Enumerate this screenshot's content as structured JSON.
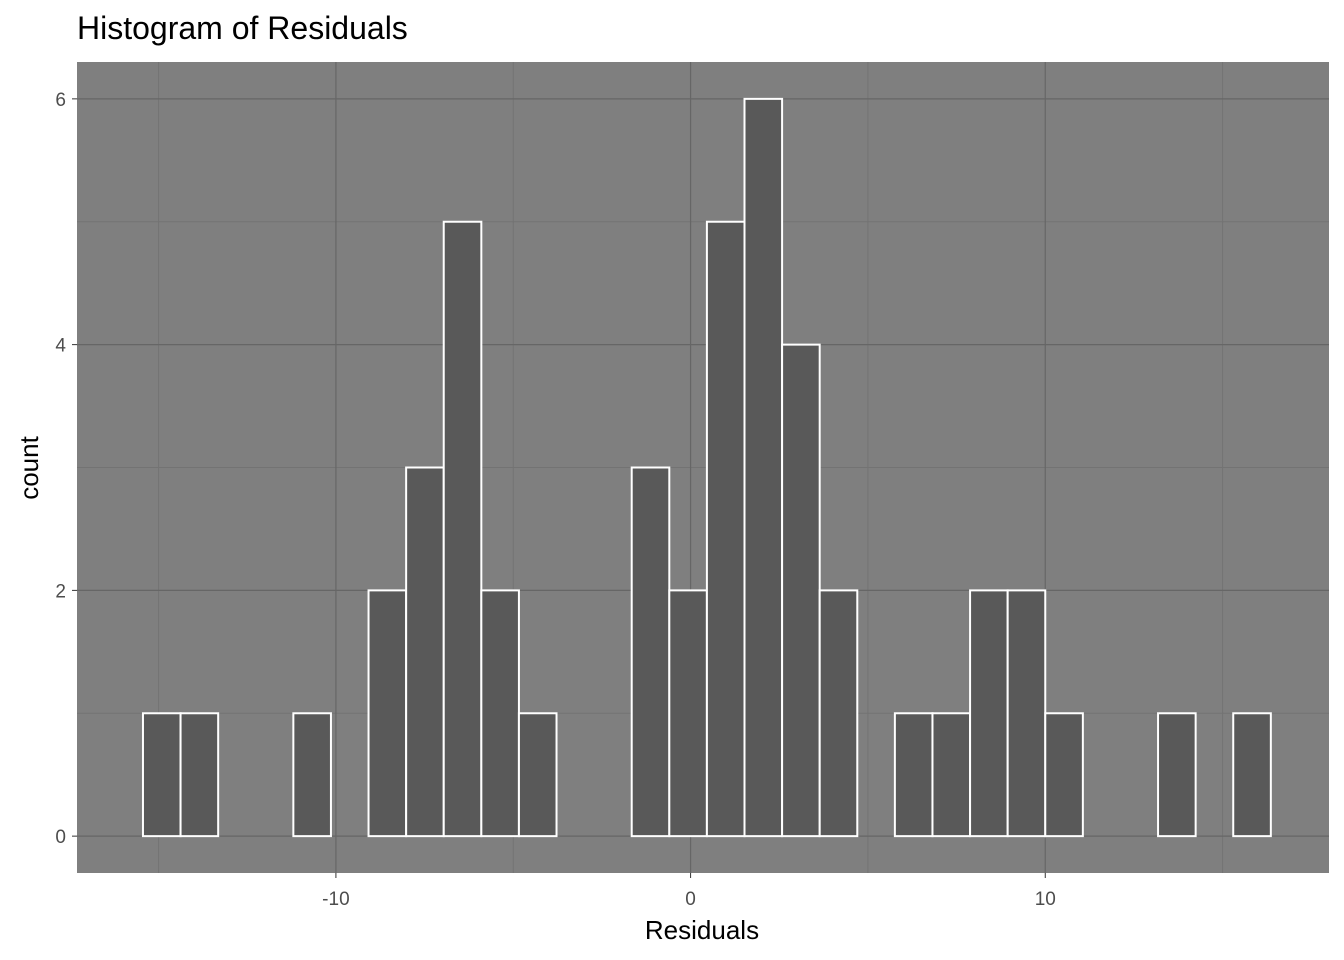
{
  "chart_data": {
    "type": "bar",
    "title": "Histogram of Residuals",
    "xlabel": "Residuals",
    "ylabel": "count",
    "bin_width": 1.06,
    "bins": [
      {
        "x_start": -15.44,
        "x_end": -14.38,
        "count": 1
      },
      {
        "x_start": -14.38,
        "x_end": -13.32,
        "count": 1
      },
      {
        "x_start": -13.32,
        "x_end": -12.26,
        "count": 0
      },
      {
        "x_start": -12.26,
        "x_end": -11.2,
        "count": 0
      },
      {
        "x_start": -11.2,
        "x_end": -10.14,
        "count": 1
      },
      {
        "x_start": -10.14,
        "x_end": -9.08,
        "count": 0
      },
      {
        "x_start": -9.08,
        "x_end": -8.02,
        "count": 2
      },
      {
        "x_start": -8.02,
        "x_end": -6.96,
        "count": 3
      },
      {
        "x_start": -6.96,
        "x_end": -5.9,
        "count": 5
      },
      {
        "x_start": -5.9,
        "x_end": -4.84,
        "count": 2
      },
      {
        "x_start": -4.84,
        "x_end": -3.78,
        "count": 1
      },
      {
        "x_start": -3.78,
        "x_end": -2.72,
        "count": 0
      },
      {
        "x_start": -2.72,
        "x_end": -1.66,
        "count": 0
      },
      {
        "x_start": -1.66,
        "x_end": -0.6,
        "count": 3
      },
      {
        "x_start": -0.6,
        "x_end": 0.46,
        "count": 2
      },
      {
        "x_start": 0.46,
        "x_end": 1.52,
        "count": 5
      },
      {
        "x_start": 1.52,
        "x_end": 2.58,
        "count": 6
      },
      {
        "x_start": 2.58,
        "x_end": 3.64,
        "count": 4
      },
      {
        "x_start": 3.64,
        "x_end": 4.7,
        "count": 2
      },
      {
        "x_start": 4.7,
        "x_end": 5.76,
        "count": 0
      },
      {
        "x_start": 5.76,
        "x_end": 6.82,
        "count": 1
      },
      {
        "x_start": 6.82,
        "x_end": 7.88,
        "count": 1
      },
      {
        "x_start": 7.88,
        "x_end": 8.94,
        "count": 2
      },
      {
        "x_start": 8.94,
        "x_end": 10.0,
        "count": 2
      },
      {
        "x_start": 10.0,
        "x_end": 11.06,
        "count": 1
      },
      {
        "x_start": 11.06,
        "x_end": 12.12,
        "count": 0
      },
      {
        "x_start": 12.12,
        "x_end": 13.18,
        "count": 0
      },
      {
        "x_start": 13.18,
        "x_end": 14.24,
        "count": 1
      },
      {
        "x_start": 14.24,
        "x_end": 15.3,
        "count": 0
      },
      {
        "x_start": 15.3,
        "x_end": 16.36,
        "count": 1
      }
    ],
    "xlim": [
      -17.3,
      18.0
    ],
    "ylim": [
      -0.3,
      6.3
    ],
    "x_ticks": [
      -10,
      0,
      10
    ],
    "x_tick_labels": [
      "-10",
      "0",
      "10"
    ],
    "y_ticks": [
      0,
      2,
      4,
      6
    ],
    "y_tick_labels": [
      "0",
      "2",
      "4",
      "6"
    ],
    "grid": true,
    "colors": {
      "panel_background": "#7f7f7f",
      "grid_major": "#666666",
      "grid_minor": "#737373",
      "bar_fill": "#595959",
      "bar_outline": "#ffffff"
    }
  }
}
